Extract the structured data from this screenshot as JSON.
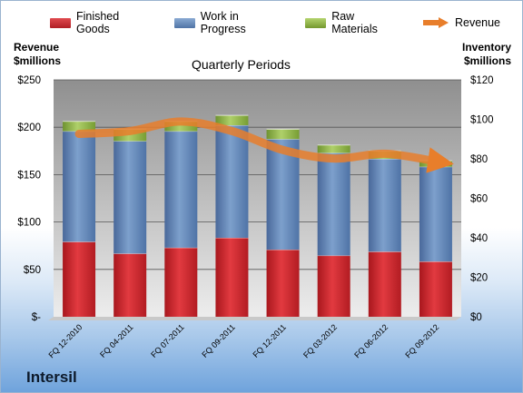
{
  "chart_data": {
    "type": "bar",
    "title": "Quarterly Periods",
    "company": "Intersil",
    "left_axis_title": [
      "Revenue",
      "$millions"
    ],
    "right_axis_title": [
      "Inventory",
      "$millions"
    ],
    "categories": [
      "FQ 12-2010",
      "FQ 04-2011",
      "FQ 07-2011",
      "FQ 09-2011",
      "FQ 12-2011",
      "FQ 03-2012",
      "FQ 06-2012",
      "FQ 09-2012"
    ],
    "left_ticks": [
      "$-",
      "$50",
      "$100",
      "$150",
      "$200",
      "$250"
    ],
    "right_ticks": [
      "$0",
      "$20",
      "$40",
      "$60",
      "$80",
      "$100",
      "$120"
    ],
    "ylim_left": [
      0,
      250
    ],
    "ylim_right": [
      0,
      120
    ],
    "stacked": true,
    "grid": true,
    "legend_position": "top",
    "series": [
      {
        "name": "Finished Goods",
        "color": "#c8252b",
        "values": [
          38,
          32,
          35,
          40,
          34,
          31,
          33,
          28
        ]
      },
      {
        "name": "Work in Progress",
        "color": "#5f86b8",
        "values": [
          56,
          57,
          59,
          57,
          56,
          52,
          47,
          48
        ]
      },
      {
        "name": "Raw Materials",
        "color": "#8bb544",
        "values": [
          5,
          6,
          5,
          5,
          5,
          4,
          4,
          3
        ]
      },
      {
        "name": "Revenue",
        "type": "line",
        "color": "#e87e2b",
        "values": [
          193,
          196,
          206,
          196,
          176,
          167,
          172,
          164
        ]
      }
    ]
  }
}
